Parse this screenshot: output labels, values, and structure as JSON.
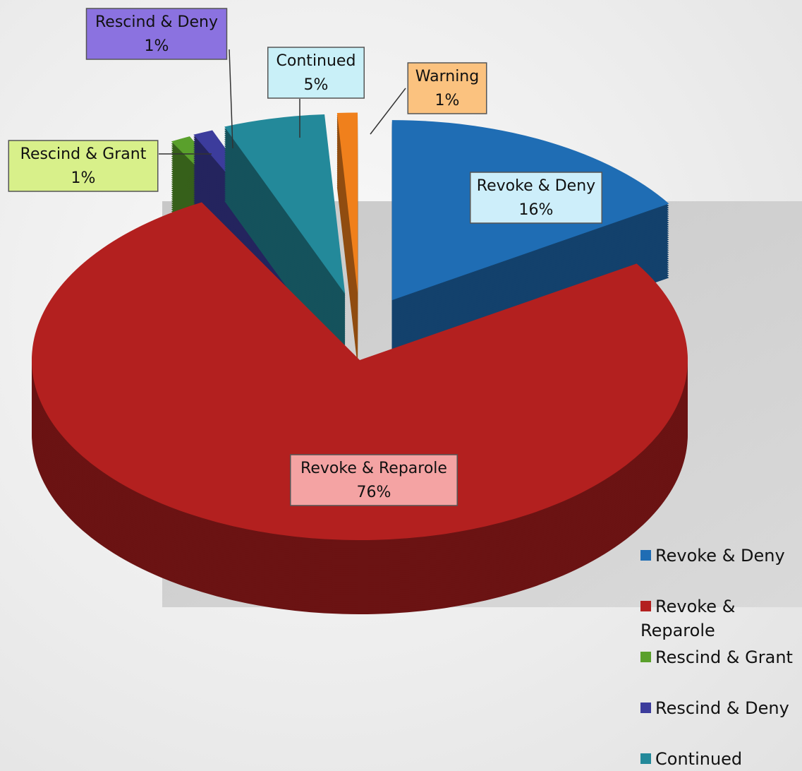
{
  "chart_data": {
    "type": "pie3d",
    "categories": [
      "Revoke & Deny",
      "Revoke & Reparole",
      "Rescind & Grant",
      "Rescind & Deny",
      "Continued",
      "Warning"
    ],
    "values": [
      16,
      76,
      1,
      1,
      5,
      1
    ],
    "value_labels": [
      "16%",
      "76%",
      "1%",
      "1%",
      "5%",
      "1%"
    ],
    "colors": [
      "#1f6db4",
      "#b3201f",
      "#5aa02c",
      "#3c3c9c",
      "#23899a",
      "#f0801c"
    ],
    "legend": "right"
  }
}
